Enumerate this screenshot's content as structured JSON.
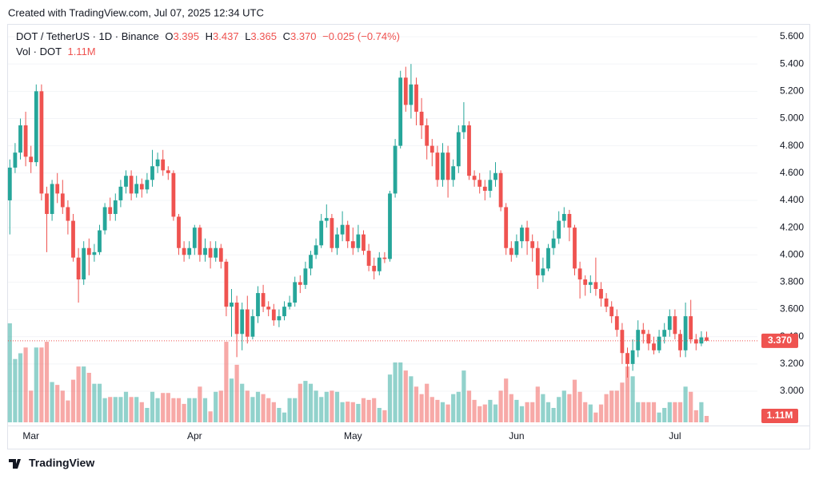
{
  "header": "Created with TradingView.com, Jul 07, 2025 12:34 UTC",
  "footer": "TradingView",
  "chart_data": {
    "type": "candlestick",
    "legend": {
      "symbol": "DOT / TetherUS · 1D · Binance",
      "open_key": "O",
      "open": "3.395",
      "high_key": "H",
      "high": "3.437",
      "low_key": "L",
      "low": "3.365",
      "close_key": "C",
      "close": "3.370",
      "change": "−0.025 (−0.74%)",
      "volume_name": "Vol · DOT",
      "volume": "1.11M"
    },
    "last_price_label": "3.370",
    "last_volume_label": "1.11M",
    "up_color": "#26a69a",
    "down_color": "#ef5350",
    "grid": true,
    "ylim": [
      2.766,
      5.682
    ],
    "yticks": [
      {
        "value": 3.0,
        "label": "3.000"
      },
      {
        "value": 3.2,
        "label": "3.200"
      },
      {
        "value": 3.4,
        "label": "3.400"
      },
      {
        "value": 3.6,
        "label": "3.600"
      },
      {
        "value": 3.8,
        "label": "3.800"
      },
      {
        "value": 4.0,
        "label": "4.000"
      },
      {
        "value": 4.2,
        "label": "4.200"
      },
      {
        "value": 4.4,
        "label": "4.400"
      },
      {
        "value": 4.6,
        "label": "4.600"
      },
      {
        "value": 4.8,
        "label": "4.800"
      },
      {
        "value": 5.0,
        "label": "5.000"
      },
      {
        "value": 5.2,
        "label": "5.200"
      },
      {
        "value": 5.4,
        "label": "5.400"
      },
      {
        "value": 5.6,
        "label": "5.600"
      }
    ],
    "categories": [
      null,
      null,
      null,
      null,
      "Mar",
      null,
      null,
      null,
      null,
      null,
      null,
      null,
      null,
      null,
      null,
      null,
      null,
      null,
      null,
      null,
      null,
      null,
      null,
      null,
      null,
      null,
      null,
      null,
      null,
      null,
      null,
      null,
      null,
      null,
      null,
      "Apr",
      null,
      null,
      null,
      null,
      null,
      null,
      null,
      null,
      null,
      null,
      null,
      null,
      null,
      null,
      null,
      null,
      null,
      null,
      null,
      null,
      null,
      null,
      null,
      null,
      null,
      null,
      null,
      null,
      null,
      "May",
      null,
      null,
      null,
      null,
      null,
      null,
      null,
      null,
      null,
      null,
      null,
      null,
      null,
      null,
      null,
      null,
      null,
      null,
      null,
      null,
      null,
      null,
      null,
      null,
      null,
      null,
      null,
      null,
      null,
      null,
      "Jun",
      null,
      null,
      null,
      null,
      null,
      null,
      null,
      null,
      null,
      null,
      null,
      null,
      null,
      null,
      null,
      null,
      null,
      null,
      null,
      null,
      null,
      null,
      null,
      null,
      null,
      null,
      null,
      null,
      null,
      "Jul",
      null,
      null,
      null,
      null,
      null,
      null
    ],
    "open": [
      4.4,
      4.64,
      4.75,
      4.95,
      4.72,
      4.68,
      5.2,
      4.45,
      4.3,
      4.52,
      4.45,
      4.35,
      4.25,
      3.98,
      3.82,
      4.05,
      4.0,
      4.02,
      4.18,
      4.35,
      4.3,
      4.4,
      4.5,
      4.58,
      4.45,
      4.52,
      4.48,
      4.55,
      4.65,
      4.7,
      4.62,
      4.6,
      4.28,
      4.05,
      4.0,
      4.05,
      4.2,
      4.0,
      4.05,
      3.98,
      4.05,
      3.95,
      3.62,
      3.65,
      3.42,
      3.6,
      3.4,
      3.55,
      3.72,
      3.62,
      3.6,
      3.52,
      3.55,
      3.62,
      3.65,
      3.8,
      3.78,
      3.9,
      4.0,
      4.07,
      4.25,
      4.27,
      4.05,
      4.15,
      4.22,
      4.1,
      4.05,
      4.15,
      4.03,
      3.92,
      3.88,
      3.98,
      3.97,
      4.45,
      4.8,
      5.3,
      5.1,
      5.25,
      5.05,
      4.95,
      4.8,
      4.75,
      4.55,
      4.75,
      4.55,
      4.65,
      4.9,
      4.95,
      4.58,
      4.55,
      4.5,
      4.47,
      4.55,
      4.6,
      4.35,
      4.05,
      4.0,
      4.1,
      4.2,
      4.1,
      4.05,
      3.85,
      3.9,
      4.05,
      4.12,
      4.25,
      4.3,
      4.2,
      3.9,
      3.82,
      3.78,
      3.8,
      3.75,
      3.68,
      3.62,
      3.55,
      3.45,
      3.28,
      3.2,
      3.3,
      3.45,
      3.42,
      3.35,
      3.3,
      3.4,
      3.45,
      3.55,
      3.42,
      3.3,
      3.55,
      3.38,
      3.35,
      3.395
    ],
    "high": [
      4.7,
      4.82,
      5.0,
      5.05,
      4.8,
      5.25,
      5.25,
      4.5,
      4.55,
      4.6,
      4.55,
      4.4,
      4.3,
      4.05,
      4.1,
      4.12,
      4.08,
      4.22,
      4.38,
      4.42,
      4.45,
      4.55,
      4.62,
      4.62,
      4.58,
      4.56,
      4.6,
      4.77,
      4.75,
      4.77,
      4.65,
      4.62,
      4.3,
      4.1,
      4.1,
      4.22,
      4.22,
      4.12,
      4.1,
      4.1,
      4.08,
      3.97,
      3.75,
      3.7,
      3.65,
      3.7,
      3.6,
      3.77,
      3.78,
      3.66,
      3.64,
      3.6,
      3.66,
      3.7,
      3.84,
      3.85,
      3.95,
      4.03,
      4.12,
      4.3,
      4.37,
      4.3,
      4.2,
      4.32,
      4.25,
      4.2,
      4.22,
      4.18,
      4.08,
      3.98,
      4.02,
      4.02,
      4.47,
      4.85,
      5.35,
      5.38,
      5.4,
      5.3,
      5.15,
      5.0,
      4.85,
      4.8,
      4.82,
      4.8,
      4.7,
      4.95,
      5.12,
      4.98,
      4.62,
      4.6,
      4.55,
      4.62,
      4.68,
      4.62,
      4.38,
      4.1,
      4.15,
      4.22,
      4.25,
      4.15,
      4.1,
      3.98,
      4.08,
      4.18,
      4.32,
      4.35,
      4.33,
      4.22,
      3.95,
      3.85,
      3.85,
      3.98,
      3.8,
      3.72,
      3.66,
      3.6,
      3.5,
      3.32,
      3.38,
      3.52,
      3.5,
      3.45,
      3.4,
      3.45,
      3.5,
      3.6,
      3.6,
      3.45,
      3.65,
      3.67,
      3.42,
      3.44,
      3.437
    ],
    "low": [
      4.15,
      4.6,
      4.7,
      4.65,
      4.6,
      4.65,
      4.4,
      4.02,
      4.25,
      4.38,
      4.3,
      4.15,
      3.95,
      3.65,
      3.78,
      3.85,
      3.95,
      4.0,
      4.15,
      4.25,
      4.25,
      4.35,
      4.45,
      4.4,
      4.42,
      4.42,
      4.45,
      4.5,
      4.6,
      4.58,
      4.55,
      4.25,
      4.0,
      3.95,
      3.97,
      4.0,
      3.95,
      3.95,
      3.9,
      3.95,
      3.9,
      3.55,
      3.4,
      3.25,
      3.3,
      3.35,
      3.38,
      3.5,
      3.58,
      3.55,
      3.48,
      3.47,
      3.52,
      3.6,
      3.62,
      3.72,
      3.75,
      3.85,
      3.97,
      4.05,
      4.2,
      4.02,
      4.0,
      4.1,
      4.05,
      4.0,
      4.02,
      4.0,
      3.88,
      3.82,
      3.85,
      3.94,
      3.95,
      4.42,
      4.78,
      5.05,
      5.0,
      4.95,
      4.85,
      4.7,
      4.65,
      4.5,
      4.5,
      4.42,
      4.5,
      4.6,
      4.85,
      4.55,
      4.5,
      4.45,
      4.4,
      4.42,
      4.5,
      4.32,
      4.0,
      3.95,
      3.98,
      4.05,
      4.0,
      3.95,
      3.75,
      3.8,
      3.88,
      4.0,
      4.08,
      4.2,
      4.1,
      3.85,
      3.68,
      3.7,
      3.72,
      3.7,
      3.62,
      3.58,
      3.5,
      3.4,
      3.2,
      3.1,
      3.15,
      3.25,
      3.35,
      3.3,
      3.27,
      3.28,
      3.35,
      3.4,
      3.38,
      3.25,
      3.25,
      3.35,
      3.3,
      3.33,
      3.365
    ],
    "close": [
      4.64,
      4.75,
      4.95,
      4.72,
      4.68,
      5.2,
      4.45,
      4.3,
      4.52,
      4.45,
      4.35,
      4.25,
      3.98,
      3.82,
      4.05,
      4.0,
      4.02,
      4.18,
      4.35,
      4.3,
      4.4,
      4.5,
      4.58,
      4.45,
      4.52,
      4.48,
      4.55,
      4.65,
      4.7,
      4.62,
      4.6,
      4.28,
      4.05,
      4.0,
      4.05,
      4.2,
      4.0,
      4.05,
      3.98,
      4.05,
      3.95,
      3.62,
      3.65,
      3.42,
      3.6,
      3.4,
      3.55,
      3.72,
      3.62,
      3.6,
      3.52,
      3.55,
      3.62,
      3.65,
      3.8,
      3.78,
      3.9,
      4.0,
      4.07,
      4.25,
      4.27,
      4.05,
      4.15,
      4.22,
      4.1,
      4.05,
      4.15,
      4.03,
      3.92,
      3.88,
      3.98,
      3.97,
      4.45,
      4.8,
      5.3,
      5.1,
      5.25,
      5.05,
      4.95,
      4.8,
      4.75,
      4.55,
      4.75,
      4.55,
      4.65,
      4.9,
      4.95,
      4.58,
      4.55,
      4.5,
      4.47,
      4.55,
      4.6,
      4.35,
      4.05,
      4.0,
      4.1,
      4.2,
      4.1,
      4.05,
      3.85,
      3.9,
      4.05,
      4.12,
      4.25,
      4.3,
      4.2,
      3.9,
      3.82,
      3.78,
      3.8,
      3.75,
      3.68,
      3.62,
      3.55,
      3.45,
      3.28,
      3.2,
      3.3,
      3.45,
      3.42,
      3.35,
      3.3,
      3.4,
      3.45,
      3.55,
      3.42,
      3.3,
      3.55,
      3.38,
      3.35,
      3.395,
      3.37
    ],
    "volume": [
      17.2,
      11,
      12,
      13,
      5.5,
      13,
      13,
      14,
      7,
      6.5,
      5.5,
      3.8,
      7.4,
      9.7,
      9.7,
      8.6,
      6.7,
      6.7,
      4.2,
      4.4,
      4.4,
      4.4,
      5.3,
      4.4,
      4.4,
      3.5,
      2.5,
      5.3,
      4.2,
      5.1,
      5.1,
      4.2,
      4.2,
      3.2,
      4.2,
      4.2,
      6.2,
      4.2,
      1.9,
      5.3,
      5.5,
      14,
      7.6,
      10,
      6.7,
      5.5,
      4.4,
      5.3,
      4.9,
      4.2,
      3.5,
      2.5,
      1.7,
      4.2,
      4.2,
      6.7,
      7.2,
      6.7,
      5.5,
      4.4,
      5.3,
      5.5,
      5.3,
      3.5,
      3.6,
      3.5,
      3.2,
      4.2,
      3.9,
      4.2,
      2.5,
      2.1,
      8.3,
      10.4,
      10.4,
      9,
      8,
      6.2,
      4.9,
      6.7,
      4.4,
      3.9,
      3.5,
      3.1,
      4.9,
      5.3,
      9,
      5.5,
      3.9,
      2.8,
      3.1,
      3.9,
      3.1,
      5.5,
      7.6,
      4.9,
      3.9,
      2.8,
      3.5,
      3.5,
      6.2,
      4.9,
      3.5,
      2.5,
      4.4,
      5.5,
      4.9,
      7.4,
      5.3,
      3.5,
      3.1,
      1.7,
      3.1,
      4.9,
      5.5,
      5.5,
      6.9,
      9.7,
      8,
      3.5,
      3.5,
      3.5,
      3.5,
      1.7,
      2.5,
      3.5,
      3.5,
      3.5,
      6.2,
      5.3,
      2.1,
      3.5,
      1.11
    ]
  }
}
